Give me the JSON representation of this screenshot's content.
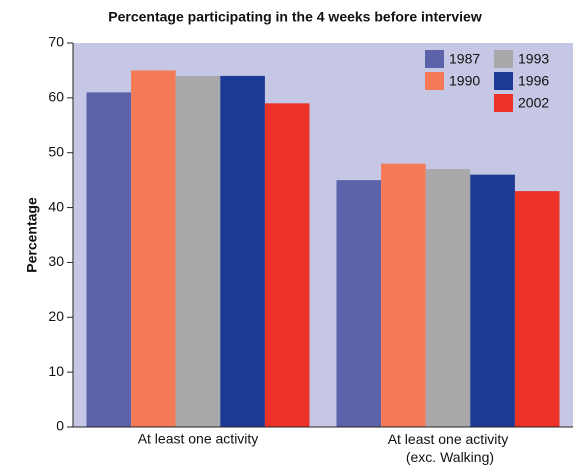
{
  "chart_data": {
    "type": "bar",
    "title": "Percentage participating in the 4 weeks before interview",
    "ylabel": "Percentage",
    "categories": [
      "At least one activity",
      "At least one activity\n(exc. Walking)"
    ],
    "series": [
      {
        "name": "1987",
        "color": "#5b62aa",
        "values": [
          61,
          45
        ]
      },
      {
        "name": "1990",
        "color": "#f47a55",
        "values": [
          65,
          48
        ]
      },
      {
        "name": "1993",
        "color": "#a8a8ab",
        "values": [
          64,
          47
        ]
      },
      {
        "name": "1996",
        "color": "#1c3a93",
        "values": [
          64,
          46
        ]
      },
      {
        "name": "2002",
        "color": "#ec3226",
        "values": [
          59,
          43
        ]
      }
    ],
    "ylim": [
      0,
      70
    ],
    "yticks": [
      0,
      10,
      20,
      30,
      40,
      50,
      60,
      70
    ],
    "background": "#c5c7e4",
    "legend": "upper right"
  }
}
